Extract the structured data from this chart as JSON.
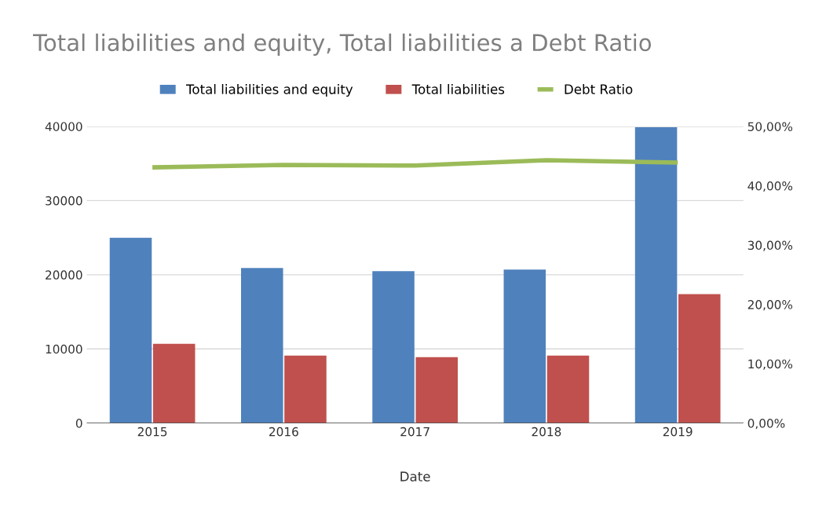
{
  "chart_data": {
    "type": "bar",
    "title": "Total liabilities and equity, Total liabilities a Debt Ratio",
    "xlabel": "Date",
    "categories": [
      "2015",
      "2016",
      "2017",
      "2018",
      "2019"
    ],
    "series": [
      {
        "name": "Total liabilities and equity",
        "color": "#4f81bd",
        "values": [
          25000,
          20900,
          20500,
          20700,
          39900
        ]
      },
      {
        "name": "Total liabilities",
        "color": "#c0504d",
        "values": [
          10700,
          9100,
          8900,
          9100,
          17400
        ]
      },
      {
        "name": "Debt Ratio",
        "type": "line",
        "axis": "y2",
        "color": "#9bbb59",
        "values": [
          43.1,
          43.5,
          43.4,
          44.3,
          43.9
        ]
      }
    ],
    "ylim": [
      0,
      40000
    ],
    "yticks": [
      0,
      10000,
      20000,
      30000,
      40000
    ],
    "y2lim": [
      0,
      50
    ],
    "y2ticks": [
      {
        "value": 0,
        "label": "0,00%"
      },
      {
        "value": 10,
        "label": "10,00%"
      },
      {
        "value": 20,
        "label": "20,00%"
      },
      {
        "value": 30,
        "label": "30,00%"
      },
      {
        "value": 40,
        "label": "40,00%"
      },
      {
        "value": 50,
        "label": "50,00%"
      }
    ],
    "grid": "y",
    "legend": "top"
  }
}
